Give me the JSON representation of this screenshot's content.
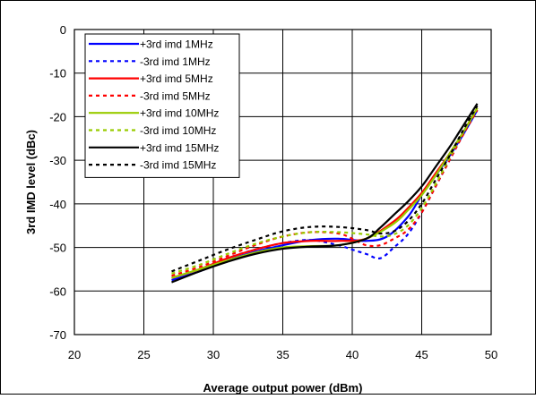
{
  "chart_data": {
    "type": "line",
    "title": "",
    "xlabel": "Average output power (dBm)",
    "ylabel": "3rd IMD level (dBc)",
    "xlim": [
      20,
      50
    ],
    "ylim": [
      -70,
      0
    ],
    "xticks": [
      20,
      25,
      30,
      35,
      40,
      45,
      50
    ],
    "yticks": [
      0,
      -10,
      -20,
      -30,
      -40,
      -50,
      -60,
      -70
    ],
    "grid": true,
    "legend_position": "top-left",
    "series": [
      {
        "name": "+3rd imd 1MHz",
        "color": "#0000ff",
        "dash": "solid",
        "x": [
          27,
          29,
          31,
          33,
          35,
          37,
          39,
          41,
          42.5,
          44,
          45,
          46,
          47,
          48,
          49
        ],
        "y": [
          -57.5,
          -55.5,
          -53,
          -51,
          -49.5,
          -48.3,
          -48,
          -48.5,
          -47.5,
          -43,
          -38,
          -33.5,
          -29,
          -24,
          -18.5
        ]
      },
      {
        "name": "-3rd imd 1MHz",
        "color": "#0000ff",
        "dash": "dotted",
        "x": [
          27,
          29,
          31,
          33,
          35,
          37,
          39,
          40,
          41,
          42,
          43,
          44,
          45,
          46,
          47,
          48,
          49
        ],
        "y": [
          -57,
          -55,
          -52.5,
          -50.5,
          -49,
          -48.3,
          -49.5,
          -50.5,
          -51.5,
          -52.5,
          -50,
          -47,
          -42,
          -36,
          -30,
          -24,
          -18.5
        ]
      },
      {
        "name": "+3rd imd 5MHz",
        "color": "#ff0000",
        "dash": "solid",
        "x": [
          27,
          29,
          31,
          33,
          35,
          37,
          39,
          41,
          43,
          44,
          45,
          46,
          47,
          48,
          49
        ],
        "y": [
          -57,
          -55,
          -52.5,
          -50.5,
          -49,
          -48.5,
          -48.5,
          -48,
          -44,
          -41,
          -37.5,
          -33,
          -28.5,
          -23.5,
          -18
        ]
      },
      {
        "name": "-3rd imd 5MHz",
        "color": "#ff0000",
        "dash": "dotted",
        "x": [
          27,
          29,
          31,
          33,
          35,
          37,
          39,
          40,
          41,
          42,
          43,
          44,
          45,
          46,
          47,
          48,
          49
        ],
        "y": [
          -56.5,
          -54.5,
          -52,
          -49.5,
          -47.5,
          -46.5,
          -46.8,
          -48,
          -49.5,
          -49.5,
          -48,
          -46,
          -42,
          -36,
          -30,
          -24,
          -18.5
        ]
      },
      {
        "name": "+3rd imd 10MHz",
        "color": "#99cc00",
        "dash": "solid",
        "x": [
          27,
          29,
          31,
          33,
          35,
          37,
          39,
          41,
          43,
          44,
          45,
          46,
          47,
          48,
          49
        ],
        "y": [
          -57,
          -55,
          -53,
          -51.2,
          -50,
          -49.7,
          -49.5,
          -48,
          -44.5,
          -41.5,
          -38,
          -33.5,
          -28.5,
          -23.5,
          -18
        ]
      },
      {
        "name": "-3rd imd 10MHz",
        "color": "#99cc00",
        "dash": "dotted",
        "x": [
          27,
          29,
          31,
          33,
          35,
          37,
          39,
          41,
          42,
          43,
          44,
          45,
          46,
          47,
          48,
          49
        ],
        "y": [
          -56,
          -54,
          -51.5,
          -49.2,
          -47.5,
          -46.5,
          -46.5,
          -47,
          -47.5,
          -47,
          -45,
          -41,
          -35.5,
          -29.5,
          -23.5,
          -18
        ]
      },
      {
        "name": "+3rd imd 15MHz",
        "color": "#000000",
        "dash": "solid",
        "x": [
          27,
          29,
          31,
          33,
          35,
          37,
          39,
          41,
          42,
          43,
          44,
          45,
          46,
          47,
          48,
          49
        ],
        "y": [
          -58,
          -55.5,
          -53.3,
          -51.5,
          -50.3,
          -49.8,
          -49.5,
          -48,
          -45.5,
          -42.5,
          -39.5,
          -36,
          -31.5,
          -27,
          -22,
          -17
        ]
      },
      {
        "name": "-3rd imd 15MHz",
        "color": "#000000",
        "dash": "dotted",
        "x": [
          27,
          29,
          31,
          33,
          35,
          37,
          39,
          41,
          42,
          43,
          44,
          45,
          46,
          47,
          48,
          49
        ],
        "y": [
          -55.5,
          -53,
          -50.5,
          -48.3,
          -46.3,
          -45.3,
          -45.3,
          -46,
          -46.8,
          -46.3,
          -44,
          -40,
          -34.5,
          -29,
          -23,
          -17.5
        ]
      }
    ]
  }
}
